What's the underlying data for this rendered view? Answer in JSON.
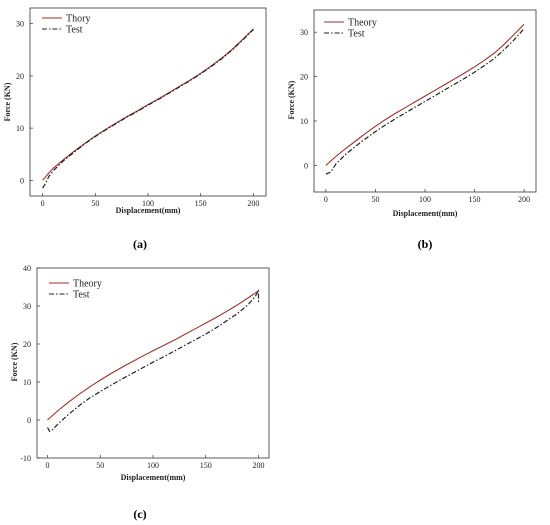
{
  "chart_data": [
    {
      "type": "line",
      "panel_label": "(a)",
      "xlabel": "Displacement(mm)",
      "ylabel": "Force (KN)",
      "xlim": [
        -12,
        212
      ],
      "ylim": [
        -3,
        33
      ],
      "xticks": [
        0,
        50,
        100,
        150,
        200
      ],
      "yticks": [
        0,
        10,
        20,
        30
      ],
      "legend_position": "top-left",
      "series": [
        {
          "name": "Thory",
          "color": "#a0302a",
          "dash": "solid",
          "x": [
            0,
            5,
            10,
            20,
            30,
            40,
            50,
            60,
            70,
            80,
            90,
            100,
            110,
            120,
            130,
            140,
            150,
            160,
            170,
            180,
            190,
            200
          ],
          "y": [
            0,
            1.2,
            2.3,
            4.0,
            5.6,
            7.1,
            8.5,
            9.8,
            11.0,
            12.2,
            13.3,
            14.5,
            15.6,
            16.8,
            18.0,
            19.2,
            20.5,
            21.9,
            23.4,
            25.1,
            27.0,
            29.0
          ]
        },
        {
          "name": "Test",
          "color": "#222222",
          "dash": "dashdot",
          "x": [
            0,
            3,
            6,
            10,
            20,
            30,
            40,
            50,
            60,
            70,
            80,
            90,
            100,
            110,
            120,
            130,
            140,
            150,
            160,
            170,
            180,
            190,
            200
          ],
          "y": [
            -1.5,
            -0.5,
            0.8,
            1.8,
            3.8,
            5.4,
            7.0,
            8.4,
            9.7,
            10.9,
            12.1,
            13.2,
            14.4,
            15.5,
            16.7,
            17.9,
            19.1,
            20.4,
            21.8,
            23.3,
            25.0,
            26.9,
            28.9
          ]
        }
      ]
    },
    {
      "type": "line",
      "panel_label": "(b)",
      "xlabel": "Displacement(mm)",
      "ylabel": "Force (KN)",
      "xlim": [
        -12,
        212
      ],
      "ylim": [
        -6,
        35
      ],
      "xticks": [
        0,
        50,
        100,
        150,
        200
      ],
      "yticks": [
        0,
        10,
        20,
        30
      ],
      "legend_position": "top-left",
      "series": [
        {
          "name": "Theory",
          "color": "#a0302a",
          "dash": "solid",
          "x": [
            0,
            10,
            20,
            30,
            40,
            50,
            60,
            70,
            80,
            90,
            100,
            110,
            120,
            130,
            140,
            150,
            160,
            170,
            180,
            190,
            200
          ],
          "y": [
            0,
            2.0,
            3.8,
            5.5,
            7.2,
            8.8,
            10.3,
            11.7,
            13.0,
            14.3,
            15.6,
            16.9,
            18.2,
            19.5,
            20.8,
            22.2,
            23.7,
            25.3,
            27.3,
            29.5,
            31.8
          ]
        },
        {
          "name": "Test",
          "color": "#222222",
          "dash": "dashdot",
          "x": [
            0,
            5,
            10,
            20,
            30,
            40,
            50,
            60,
            70,
            80,
            90,
            100,
            110,
            120,
            130,
            140,
            150,
            160,
            170,
            180,
            190,
            200
          ],
          "y": [
            -2.0,
            -1.5,
            0.3,
            2.5,
            4.3,
            6.0,
            7.6,
            9.1,
            10.5,
            11.8,
            13.1,
            14.4,
            15.7,
            17.0,
            18.3,
            19.6,
            21.0,
            22.5,
            24.1,
            26.1,
            28.3,
            30.8
          ]
        }
      ]
    },
    {
      "type": "line",
      "panel_label": "(c)",
      "xlabel": "Displacement(mm)",
      "ylabel": "Force (KN)",
      "xlim": [
        -10,
        210
      ],
      "ylim": [
        -10,
        40
      ],
      "xticks": [
        0,
        50,
        100,
        150,
        200
      ],
      "yticks": [
        -10,
        0,
        10,
        20,
        30,
        40
      ],
      "legend_position": "top-left",
      "series": [
        {
          "name": "Theory",
          "color": "#a0302a",
          "dash": "solid",
          "x": [
            0,
            10,
            20,
            30,
            40,
            50,
            60,
            70,
            80,
            90,
            100,
            110,
            120,
            130,
            140,
            150,
            160,
            170,
            180,
            190,
            200
          ],
          "y": [
            0,
            2.5,
            4.7,
            6.8,
            8.7,
            10.5,
            12.2,
            13.8,
            15.3,
            16.8,
            18.2,
            19.6,
            21.0,
            22.5,
            24.0,
            25.5,
            27.0,
            28.6,
            30.3,
            32.1,
            34.0
          ]
        },
        {
          "name": "Test",
          "color": "#222222",
          "dash": "dashdot",
          "x": [
            0,
            2,
            5,
            10,
            20,
            30,
            40,
            50,
            60,
            70,
            80,
            90,
            100,
            110,
            120,
            130,
            140,
            150,
            160,
            170,
            180,
            190,
            197,
            200,
            200
          ],
          "y": [
            -2.0,
            -3.0,
            -2.5,
            -1.0,
            1.5,
            3.8,
            5.8,
            7.5,
            9.1,
            10.7,
            12.2,
            13.7,
            15.2,
            16.6,
            18.1,
            19.6,
            21.1,
            22.6,
            24.3,
            26.1,
            28.0,
            30.3,
            32.5,
            34.2,
            31.0
          ]
        }
      ]
    }
  ]
}
